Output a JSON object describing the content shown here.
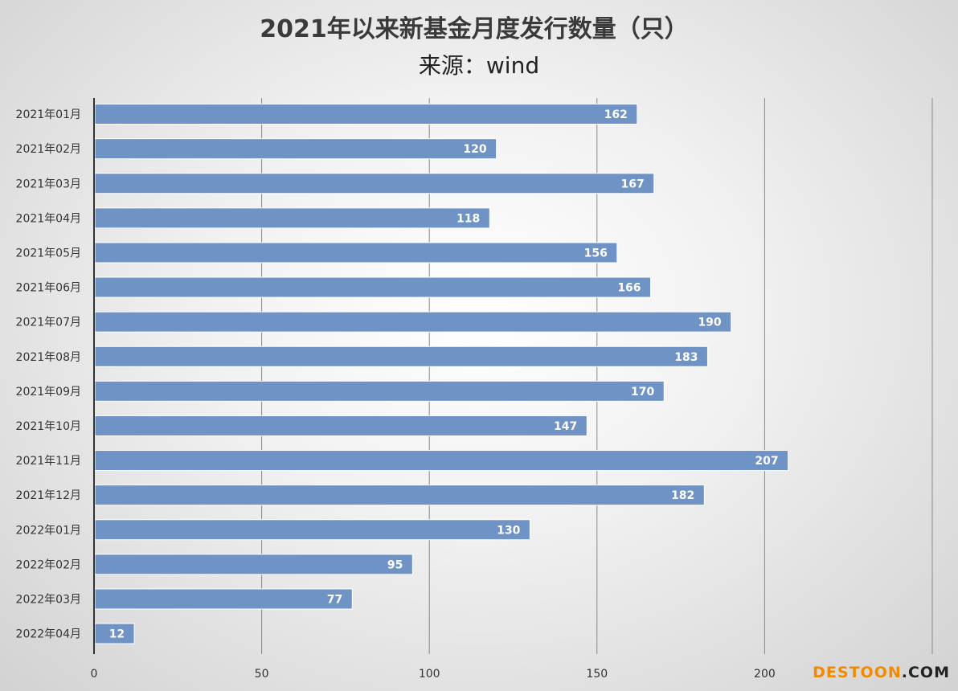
{
  "chart_data": {
    "type": "bar",
    "orientation": "horizontal",
    "title": "2021年以来新基金月度发行数量（只）",
    "subtitle": "来源：wind",
    "categories": [
      "2021年01月",
      "2021年02月",
      "2021年03月",
      "2021年04月",
      "2021年05月",
      "2021年06月",
      "2021年07月",
      "2021年08月",
      "2021年09月",
      "2021年10月",
      "2021年11月",
      "2021年12月",
      "2022年01月",
      "2022年02月",
      "2022年03月",
      "2022年04月"
    ],
    "values": [
      162,
      120,
      167,
      118,
      156,
      166,
      190,
      183,
      170,
      147,
      207,
      182,
      130,
      95,
      77,
      12
    ],
    "xlim": [
      0,
      250
    ],
    "x_ticks": [
      0,
      50,
      100,
      150,
      200
    ],
    "grid": true,
    "data_labels": true,
    "bar_color": "#7093c6",
    "bar_border_color": "#ffffff",
    "axis_color": "#333333",
    "grid_color": "#888888"
  },
  "watermark": {
    "part1": "DESTOON",
    "part2": ".COM"
  }
}
